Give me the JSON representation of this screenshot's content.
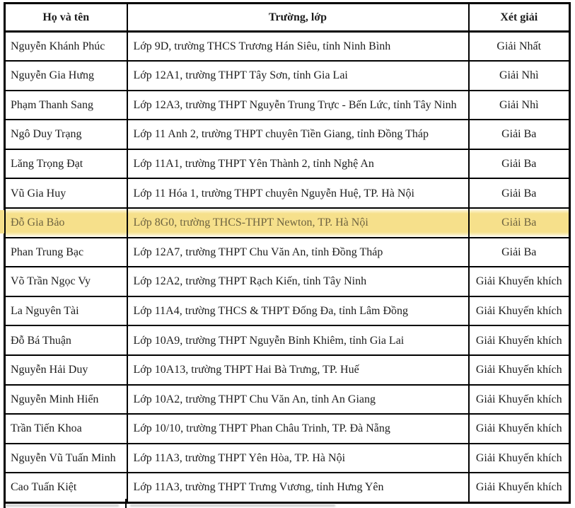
{
  "table": {
    "columns": [
      {
        "label": "Họ và tên"
      },
      {
        "label": "Trường, lớp"
      },
      {
        "label": "Xét giải"
      }
    ],
    "rows": [
      {
        "name": "Nguyễn Khánh Phúc",
        "school": "Lớp 9D, trường THCS Trương Hán Siêu, tỉnh Ninh Bình",
        "prize": "Giải Nhất",
        "highlighted": false
      },
      {
        "name": "Nguyễn Gia Hưng",
        "school": "Lớp 12A1, trường THPT Tây Sơn, tỉnh Gia Lai",
        "prize": "Giải Nhì",
        "highlighted": false
      },
      {
        "name": "Phạm Thanh Sang",
        "school": "Lớp 12A3, trường THPT Nguyễn Trung Trực - Bến Lức, tỉnh Tây Ninh",
        "prize": "Giải Nhì",
        "highlighted": false
      },
      {
        "name": "Ngô Duy Trạng",
        "school": "Lớp 11 Anh 2, trường THPT chuyên Tiền Giang, tỉnh Đồng Tháp",
        "prize": "Giải Ba",
        "highlighted": false
      },
      {
        "name": "Lăng Trọng Đạt",
        "school": "Lớp 11A1, trường THPT Yên Thành 2, tỉnh Nghệ An",
        "prize": "Giải Ba",
        "highlighted": false
      },
      {
        "name": "Vũ Gia Huy",
        "school": "Lớp 11 Hóa 1, trường THPT chuyên Nguyễn Huệ, TP. Hà Nội",
        "prize": "Giải Ba",
        "highlighted": false
      },
      {
        "name": "Đỗ Gia Bảo",
        "school": "Lớp 8G0, trường THCS-THPT Newton, TP. Hà Nội",
        "prize": "Giải Ba",
        "highlighted": true
      },
      {
        "name": "Phan Trung Bạc",
        "school": "Lớp 12A7, trường THPT Chu Văn An, tỉnh Đồng Tháp",
        "prize": "Giải Ba",
        "highlighted": false
      },
      {
        "name": "Võ Trần Ngọc Vy",
        "school": "Lớp 12A2, trường THPT Rạch Kiến, tỉnh Tây Ninh",
        "prize": "Giải Khuyến khích",
        "highlighted": false
      },
      {
        "name": "La Nguyên Tài",
        "school": "Lớp 11A4, trường THCS & THPT Đống Đa, tỉnh Lâm Đồng",
        "prize": "Giải Khuyến khích",
        "highlighted": false
      },
      {
        "name": "Đỗ Bá Thuận",
        "school": "Lớp 10A9, trường THPT Nguyễn Bỉnh Khiêm, tỉnh Gia Lai",
        "prize": "Giải Khuyến khích",
        "highlighted": false
      },
      {
        "name": "Nguyễn Hải Duy",
        "school": "Lớp 10A13, trường THPT Hai Bà Trưng, TP. Huế",
        "prize": "Giải Khuyến khích",
        "highlighted": false
      },
      {
        "name": "Nguyễn Minh Hiển",
        "school": "Lớp 10A2, trường THPT Chu Văn An, tỉnh An Giang",
        "prize": "Giải Khuyến khích",
        "highlighted": false
      },
      {
        "name": "Trần Tiến Khoa",
        "school": "Lớp 10/10, trường THPT Phan Châu Trinh, TP. Đà Nẵng",
        "prize": "Giải Khuyến khích",
        "highlighted": false
      },
      {
        "name": "Nguyễn Vũ Tuấn Minh",
        "school": "Lớp 11A3, trường THPT Yên Hòa, TP. Hà Nội",
        "prize": "Giải Khuyến khích",
        "highlighted": false
      },
      {
        "name": "Cao Tuấn Kiệt",
        "school": "Lớp 11A3, trường THPT Trưng Vương, tỉnh Hưng Yên",
        "prize": "Giải Khuyến khích",
        "highlighted": false
      }
    ]
  },
  "colors": {
    "highlight": "#f6e08b",
    "highlight_text": "#6e6340",
    "border": "#000000",
    "text": "#1c1c1c"
  }
}
